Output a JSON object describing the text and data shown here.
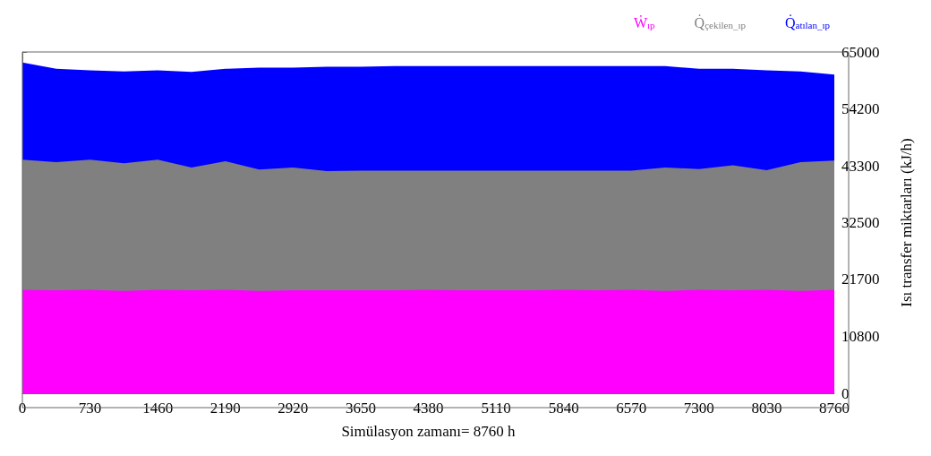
{
  "chart_data": {
    "type": "area",
    "xlabel": "Simülasyon zamanı= 8760 h",
    "ylabel": "Isı transfer miktarları (kJ/h)",
    "x": [
      0,
      365,
      730,
      1095,
      1460,
      1825,
      2190,
      2555,
      2920,
      3285,
      3650,
      4015,
      4380,
      4745,
      5110,
      5475,
      5840,
      6205,
      6570,
      6935,
      7300,
      7665,
      8030,
      8395,
      8760
    ],
    "series": [
      {
        "name": "Q̇$_{atılan_ıp}$",
        "color": "#0000ff",
        "values": [
          63000,
          61800,
          61500,
          61300,
          61500,
          61200,
          61800,
          62000,
          62000,
          62200,
          62200,
          62300,
          62300,
          62300,
          62300,
          62300,
          62300,
          62300,
          62300,
          62300,
          61800,
          61800,
          61500,
          61300,
          60700
        ]
      },
      {
        "name": "Q̇$_{çekilen_ıp}$",
        "color": "#808080",
        "values": [
          44500,
          44000,
          44500,
          43800,
          44500,
          43000,
          44200,
          42600,
          43000,
          42300,
          42400,
          42400,
          42400,
          42400,
          42400,
          42400,
          42400,
          42400,
          42400,
          43000,
          42700,
          43400,
          42500,
          44000,
          44300
        ]
      },
      {
        "name": "Ẇ$_{ıp}$",
        "color": "#ff00ff",
        "values": [
          19700,
          19600,
          19700,
          19500,
          19700,
          19600,
          19700,
          19500,
          19600,
          19600,
          19600,
          19600,
          19700,
          19600,
          19600,
          19600,
          19700,
          19600,
          19700,
          19500,
          19700,
          19600,
          19700,
          19500,
          19700
        ]
      }
    ],
    "xlim": [
      0,
      8760
    ],
    "xticks": [
      0,
      730,
      1460,
      2190,
      2920,
      3650,
      4380,
      5110,
      5840,
      6570,
      7300,
      8030,
      8760
    ],
    "ylim": [
      0,
      65000
    ],
    "yticks": [
      0,
      10800,
      21700,
      32500,
      43300,
      54200,
      65000
    ],
    "legend": "top right",
    "grid": false
  }
}
